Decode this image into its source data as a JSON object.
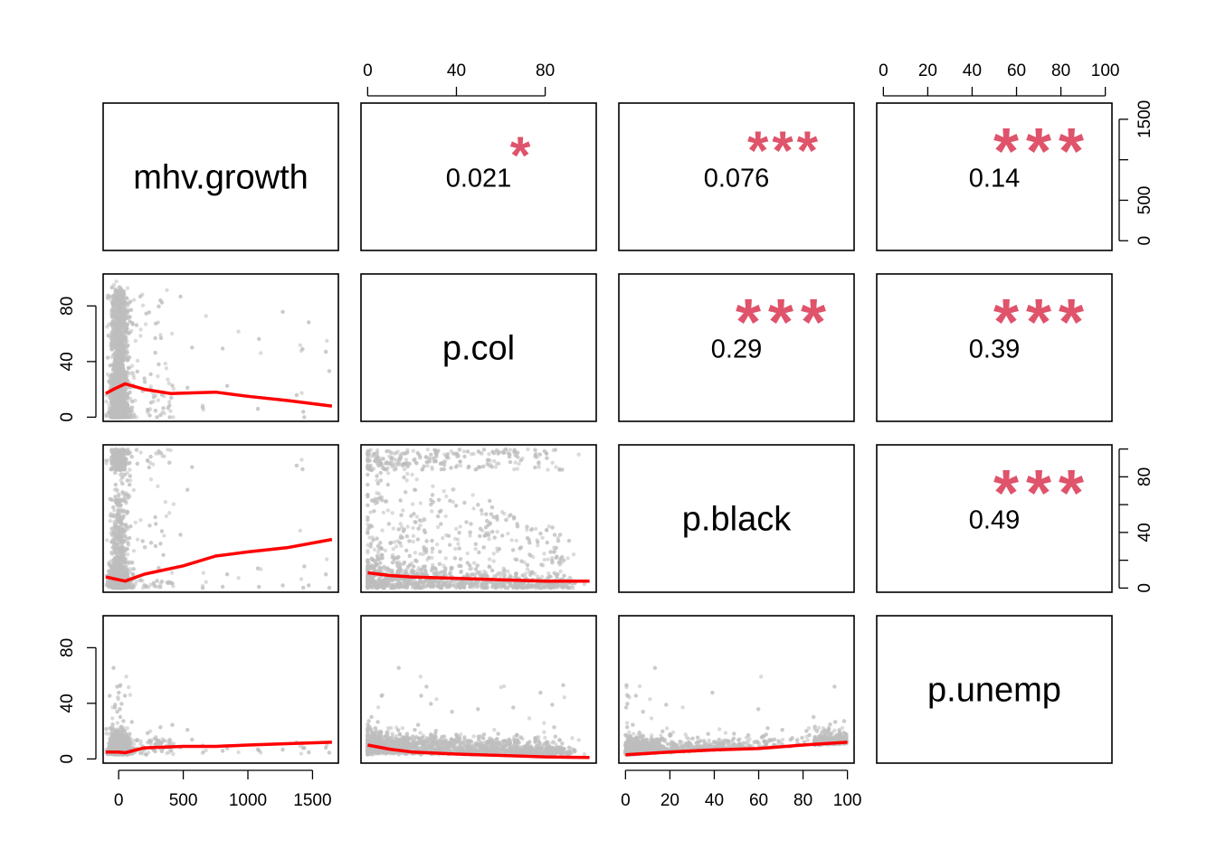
{
  "chart_data": {
    "type": "scatter-matrix",
    "variables": [
      "mhv.growth",
      "p.col",
      "p.black",
      "p.unemp"
    ],
    "axes": {
      "mhv.growth": {
        "range": [
          -120,
          1700
        ],
        "ticks": [
          0,
          500,
          1000,
          1500
        ],
        "tick_labels": [
          "0",
          "500",
          "1000",
          "1500"
        ]
      },
      "p.col": {
        "range": [
          -3,
          103
        ],
        "ticks": [
          0,
          40,
          80
        ],
        "tick_labels": [
          "0",
          "40",
          "80"
        ]
      },
      "p.black": {
        "range": [
          -3,
          103
        ],
        "ticks": [
          0,
          20,
          40,
          60,
          80,
          100
        ],
        "tick_labels": [
          "0",
          "20",
          "40",
          "60",
          "80",
          "100"
        ],
        "right_ticks": [
          0,
          40,
          80
        ],
        "right_tick_labels": [
          "0",
          "40",
          "80"
        ]
      },
      "p.unemp": {
        "range": [
          -3,
          103
        ],
        "ticks": [
          0,
          20,
          40,
          60,
          80,
          100
        ],
        "tick_labels": [
          "0",
          "20",
          "40",
          "60",
          "80",
          "100"
        ],
        "left_ticks": [
          0,
          40,
          80
        ],
        "left_tick_labels": [
          "0",
          "40",
          "80"
        ]
      }
    },
    "correlations": [
      {
        "row": "mhv.growth",
        "col": "p.col",
        "value": "0.021",
        "stars": "*"
      },
      {
        "row": "mhv.growth",
        "col": "p.black",
        "value": "0.076",
        "stars": "***"
      },
      {
        "row": "mhv.growth",
        "col": "p.unemp",
        "value": "0.14",
        "stars": "***"
      },
      {
        "row": "p.col",
        "col": "p.black",
        "value": "0.29",
        "stars": "***"
      },
      {
        "row": "p.col",
        "col": "p.unemp",
        "value": "0.39",
        "stars": "***"
      },
      {
        "row": "p.black",
        "col": "p.unemp",
        "value": "0.49",
        "stars": "***"
      }
    ],
    "smoothers": [
      {
        "x": "mhv.growth",
        "y": "p.col",
        "points": [
          [
            -100,
            17
          ],
          [
            -40,
            20
          ],
          [
            50,
            24
          ],
          [
            200,
            20
          ],
          [
            400,
            17
          ],
          [
            750,
            18
          ],
          [
            1000,
            15
          ],
          [
            1300,
            12
          ],
          [
            1650,
            8
          ]
        ]
      },
      {
        "x": "mhv.growth",
        "y": "p.black",
        "points": [
          [
            -100,
            8
          ],
          [
            0,
            6
          ],
          [
            50,
            5
          ],
          [
            200,
            10
          ],
          [
            500,
            16
          ],
          [
            750,
            23
          ],
          [
            1000,
            26
          ],
          [
            1300,
            29
          ],
          [
            1650,
            35
          ]
        ]
      },
      {
        "x": "mhv.growth",
        "y": "p.unemp",
        "points": [
          [
            -100,
            5
          ],
          [
            0,
            5
          ],
          [
            50,
            4.5
          ],
          [
            200,
            8
          ],
          [
            500,
            9
          ],
          [
            750,
            9
          ],
          [
            1000,
            10
          ],
          [
            1300,
            11
          ],
          [
            1650,
            12
          ]
        ]
      },
      {
        "x": "p.col",
        "y": "p.black",
        "points": [
          [
            0,
            11
          ],
          [
            10,
            9
          ],
          [
            20,
            8
          ],
          [
            40,
            7
          ],
          [
            60,
            6
          ],
          [
            80,
            5
          ],
          [
            100,
            5
          ]
        ]
      },
      {
        "x": "p.col",
        "y": "p.unemp",
        "points": [
          [
            0,
            10
          ],
          [
            10,
            7
          ],
          [
            20,
            5
          ],
          [
            40,
            3.5
          ],
          [
            60,
            2.5
          ],
          [
            80,
            1.5
          ],
          [
            100,
            1
          ]
        ]
      },
      {
        "x": "p.black",
        "y": "p.unemp",
        "points": [
          [
            0,
            3
          ],
          [
            20,
            5
          ],
          [
            40,
            6.5
          ],
          [
            60,
            7.5
          ],
          [
            80,
            10
          ],
          [
            100,
            12
          ]
        ]
      }
    ],
    "point_color": "#bebebe",
    "smoother_color": "#ff0000",
    "star_color": "#df536b"
  }
}
